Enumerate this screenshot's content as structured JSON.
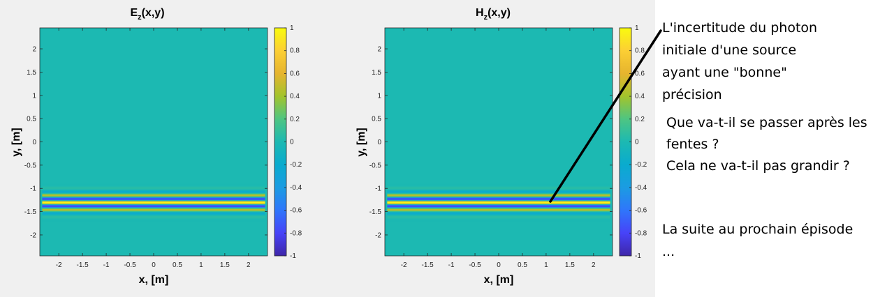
{
  "chart_data": [
    {
      "type": "heatmap",
      "title_main": "E",
      "title_sub": "z",
      "title_rest": "(x,y)",
      "xlabel": "x, [m]",
      "ylabel": "y, [m]",
      "xlim": [
        -2.4,
        2.4
      ],
      "ylim": [
        -2.45,
        2.45
      ],
      "xticks": [
        -2,
        -1.5,
        -1,
        -0.5,
        0,
        0.5,
        1,
        1.5,
        2
      ],
      "yticks": [
        2,
        1.5,
        1,
        0.5,
        0,
        -0.5,
        -1,
        -1.5,
        -2
      ],
      "colorbar": {
        "range": [
          -1,
          1
        ],
        "ticks": [
          1,
          0.8,
          0.6,
          0.4,
          0.2,
          0,
          -0.2,
          -0.4,
          -0.6,
          -0.8,
          -1
        ]
      },
      "field": {
        "center_y": -1.3,
        "envelope_sigma": 0.13,
        "wavelength": 0.16,
        "x_extent": [
          -2.35,
          2.35
        ],
        "background_value": 0
      }
    },
    {
      "type": "heatmap",
      "title_main": "H",
      "title_sub": "z",
      "title_rest": "(x,y)",
      "xlabel": "x, [m]",
      "ylabel": "y, [m]",
      "xlim": [
        -2.4,
        2.4
      ],
      "ylim": [
        -2.45,
        2.45
      ],
      "xticks": [
        -2,
        -1.5,
        -1,
        -0.5,
        0,
        0.5,
        1,
        1.5,
        2
      ],
      "yticks": [
        2,
        1.5,
        1,
        0.5,
        0,
        -0.5,
        -1,
        -1.5,
        -2
      ],
      "colorbar": {
        "range": [
          -1,
          1
        ],
        "ticks": [
          1,
          0.8,
          0.6,
          0.4,
          0.2,
          0,
          -0.2,
          -0.4,
          -0.6,
          -0.8,
          -1
        ]
      },
      "field": {
        "center_y": -1.3,
        "envelope_sigma": 0.13,
        "wavelength": 0.16,
        "x_extent": [
          -2.35,
          2.35
        ],
        "background_value": 0
      }
    }
  ],
  "colormap": [
    "#3e26a8",
    "#4743f8",
    "#2f76fb",
    "#1b9ce2",
    "#0aabce",
    "#1cb9b2",
    "#4ec582",
    "#a2c42c",
    "#e6b42e",
    "#fccf34",
    "#f9fb0e"
  ],
  "annotations": {
    "photon_lines": [
      "L'incertitude du photon",
      "initiale d'une source",
      "ayant une \"bonne\"",
      "précision"
    ],
    "question_lines": [
      "Que va-t-il se passer après les",
      "fentes ?",
      "Cela ne va-t-il pas grandir ?"
    ],
    "suite_lines": [
      "La suite au prochain épisode",
      "..."
    ]
  }
}
